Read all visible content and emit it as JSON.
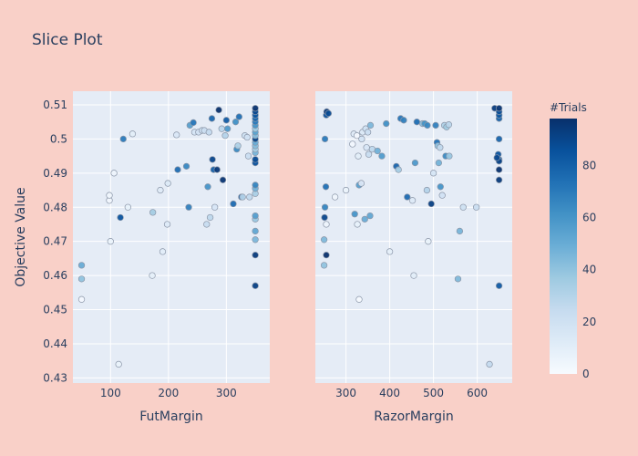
{
  "chart_data": {
    "type": "scatter",
    "title": "Slice Plot",
    "ylabel": "Objective Value",
    "ylim": [
      0.4285,
      0.514
    ],
    "y_ticks": [
      0.43,
      0.44,
      0.45,
      0.46,
      0.47,
      0.48,
      0.49,
      0.5,
      0.51
    ],
    "y_tick_labels": [
      "0.43",
      "0.44",
      "0.45",
      "0.46",
      "0.47",
      "0.48",
      "0.49",
      "0.5",
      "0.51"
    ],
    "grid": true,
    "colorbar": {
      "title": "#Trials",
      "range": [
        0,
        98
      ],
      "ticks": [
        0,
        20,
        40,
        60,
        80
      ],
      "tick_labels": [
        "0",
        "20",
        "40",
        "60",
        "80"
      ],
      "colorscale": [
        [
          0,
          "#f7fbff"
        ],
        [
          0.125,
          "#deebf7"
        ],
        [
          0.25,
          "#c6dbef"
        ],
        [
          0.375,
          "#9ecae1"
        ],
        [
          0.5,
          "#6baed6"
        ],
        [
          0.625,
          "#4292c6"
        ],
        [
          0.75,
          "#2171b5"
        ],
        [
          0.875,
          "#08519c"
        ],
        [
          1,
          "#08306b"
        ]
      ]
    },
    "subplots": [
      {
        "xlabel": "FutMargin",
        "xlim": [
          35,
          375
        ],
        "x_ticks": [
          100,
          200,
          300
        ],
        "x_tick_labels": [
          "100",
          "200",
          "300"
        ],
        "points": [
          [
            50,
            0.453,
            2
          ],
          [
            50,
            0.459,
            40
          ],
          [
            50,
            0.463,
            50
          ],
          [
            98,
            0.482,
            3
          ],
          [
            98,
            0.4835,
            4
          ],
          [
            100,
            0.47,
            6
          ],
          [
            106,
            0.49,
            5
          ],
          [
            114,
            0.434,
            7
          ],
          [
            117,
            0.477,
            85
          ],
          [
            122,
            0.5,
            70
          ],
          [
            130,
            0.48,
            8
          ],
          [
            138,
            0.5015,
            10
          ],
          [
            172,
            0.46,
            9
          ],
          [
            173,
            0.4785,
            35
          ],
          [
            186,
            0.485,
            12
          ],
          [
            190,
            0.467,
            11
          ],
          [
            198,
            0.475,
            13
          ],
          [
            199,
            0.487,
            14
          ],
          [
            214,
            0.5012,
            15
          ],
          [
            216,
            0.491,
            75
          ],
          [
            231,
            0.492,
            65
          ],
          [
            235,
            0.48,
            68
          ],
          [
            237,
            0.504,
            55
          ],
          [
            243,
            0.5048,
            72
          ],
          [
            245,
            0.502,
            17
          ],
          [
            252,
            0.502,
            18
          ],
          [
            258,
            0.5025,
            20
          ],
          [
            262,
            0.5025,
            22
          ],
          [
            266,
            0.475,
            24
          ],
          [
            268,
            0.486,
            60
          ],
          [
            270,
            0.502,
            25
          ],
          [
            272,
            0.477,
            27
          ],
          [
            275,
            0.506,
            78
          ],
          [
            276,
            0.494,
            90
          ],
          [
            278,
            0.491,
            80
          ],
          [
            280,
            0.48,
            16
          ],
          [
            284,
            0.491,
            95
          ],
          [
            287,
            0.5085,
            98
          ],
          [
            292,
            0.503,
            28
          ],
          [
            294,
            0.488,
            96
          ],
          [
            298,
            0.501,
            30
          ],
          [
            300,
            0.5055,
            82
          ],
          [
            302,
            0.503,
            58
          ],
          [
            312,
            0.481,
            76
          ],
          [
            316,
            0.505,
            62
          ],
          [
            318,
            0.497,
            64
          ],
          [
            320,
            0.498,
            32
          ],
          [
            322,
            0.5065,
            74
          ],
          [
            326,
            0.483,
            84
          ],
          [
            328,
            0.483,
            30
          ],
          [
            332,
            0.501,
            21
          ],
          [
            336,
            0.5005,
            19
          ],
          [
            338,
            0.495,
            23
          ],
          [
            340,
            0.483,
            26
          ],
          [
            350,
            0.457,
            92
          ],
          [
            350,
            0.466,
            94
          ],
          [
            350,
            0.4705,
            45
          ],
          [
            350,
            0.473,
            52
          ],
          [
            350,
            0.4765,
            38
          ],
          [
            350,
            0.4775,
            56
          ],
          [
            350,
            0.484,
            33
          ],
          [
            350,
            0.4855,
            48
          ],
          [
            350,
            0.4865,
            66
          ],
          [
            350,
            0.493,
            86
          ],
          [
            350,
            0.494,
            88
          ],
          [
            350,
            0.496,
            46
          ],
          [
            350,
            0.497,
            34
          ],
          [
            350,
            0.498,
            43
          ],
          [
            350,
            0.499,
            50
          ],
          [
            350,
            0.5,
            91
          ],
          [
            350,
            0.501,
            42
          ],
          [
            350,
            0.502,
            54
          ],
          [
            350,
            0.503,
            36
          ],
          [
            350,
            0.504,
            60
          ],
          [
            350,
            0.505,
            70
          ],
          [
            350,
            0.506,
            78
          ],
          [
            350,
            0.507,
            85
          ],
          [
            350,
            0.508,
            89
          ],
          [
            350,
            0.509,
            97
          ]
        ]
      },
      {
        "xlabel": "RazorMargin",
        "xlim": [
          230,
          680
        ],
        "x_ticks": [
          300,
          400,
          500,
          600
        ],
        "x_tick_labels": [
          "300",
          "400",
          "500",
          "600"
        ],
        "points": [
          [
            250,
            0.463,
            40
          ],
          [
            250,
            0.4705,
            44
          ],
          [
            251,
            0.477,
            90
          ],
          [
            252,
            0.48,
            66
          ],
          [
            252,
            0.5,
            70
          ],
          [
            254,
            0.486,
            74
          ],
          [
            255,
            0.466,
            98
          ],
          [
            255,
            0.475,
            5
          ],
          [
            255,
            0.507,
            86
          ],
          [
            256,
            0.508,
            95
          ],
          [
            260,
            0.5075,
            88
          ],
          [
            275,
            0.483,
            4
          ],
          [
            300,
            0.485,
            6
          ],
          [
            315,
            0.4985,
            3
          ],
          [
            318,
            0.5015,
            12
          ],
          [
            320,
            0.478,
            60
          ],
          [
            325,
            0.501,
            2
          ],
          [
            326,
            0.475,
            8
          ],
          [
            328,
            0.495,
            10
          ],
          [
            330,
            0.453,
            1
          ],
          [
            330,
            0.4865,
            55
          ],
          [
            335,
            0.487,
            15
          ],
          [
            336,
            0.5,
            18
          ],
          [
            338,
            0.502,
            14
          ],
          [
            343,
            0.4765,
            50
          ],
          [
            345,
            0.503,
            20
          ],
          [
            347,
            0.4975,
            16
          ],
          [
            350,
            0.502,
            22
          ],
          [
            352,
            0.4955,
            24
          ],
          [
            355,
            0.4775,
            52
          ],
          [
            356,
            0.504,
            45
          ],
          [
            360,
            0.497,
            27
          ],
          [
            372,
            0.4965,
            48
          ],
          [
            382,
            0.495,
            57
          ],
          [
            392,
            0.5045,
            62
          ],
          [
            400,
            0.467,
            9
          ],
          [
            415,
            0.492,
            78
          ],
          [
            420,
            0.491,
            35
          ],
          [
            425,
            0.506,
            72
          ],
          [
            432,
            0.5055,
            68
          ],
          [
            440,
            0.483,
            76
          ],
          [
            452,
            0.482,
            13
          ],
          [
            455,
            0.46,
            11
          ],
          [
            458,
            0.493,
            58
          ],
          [
            462,
            0.505,
            75
          ],
          [
            475,
            0.5045,
            42
          ],
          [
            480,
            0.5045,
            61
          ],
          [
            485,
            0.485,
            30
          ],
          [
            486,
            0.504,
            65
          ],
          [
            488,
            0.47,
            7
          ],
          [
            495,
            0.481,
            92
          ],
          [
            500,
            0.49,
            17
          ],
          [
            505,
            0.504,
            68
          ],
          [
            508,
            0.499,
            73
          ],
          [
            510,
            0.498,
            40
          ],
          [
            512,
            0.493,
            47
          ],
          [
            515,
            0.4975,
            26
          ],
          [
            516,
            0.486,
            60
          ],
          [
            520,
            0.4835,
            19
          ],
          [
            525,
            0.504,
            32
          ],
          [
            528,
            0.495,
            64
          ],
          [
            530,
            0.5035,
            36
          ],
          [
            535,
            0.5042,
            28
          ],
          [
            536,
            0.495,
            38
          ],
          [
            556,
            0.459,
            44
          ],
          [
            560,
            0.473,
            46
          ],
          [
            568,
            0.48,
            21
          ],
          [
            598,
            0.48,
            23
          ],
          [
            628,
            0.434,
            25
          ],
          [
            640,
            0.509,
            93
          ],
          [
            650,
            0.457,
            82
          ],
          [
            650,
            0.488,
            94
          ],
          [
            650,
            0.491,
            97
          ],
          [
            650,
            0.494,
            80
          ],
          [
            650,
            0.5,
            78
          ],
          [
            650,
            0.506,
            79
          ],
          [
            650,
            0.507,
            84
          ],
          [
            650,
            0.508,
            87
          ],
          [
            650,
            0.509,
            96
          ],
          [
            648,
            0.4955,
            85
          ],
          [
            650,
            0.4935,
            91
          ],
          [
            645,
            0.4945,
            89
          ]
        ]
      }
    ]
  }
}
